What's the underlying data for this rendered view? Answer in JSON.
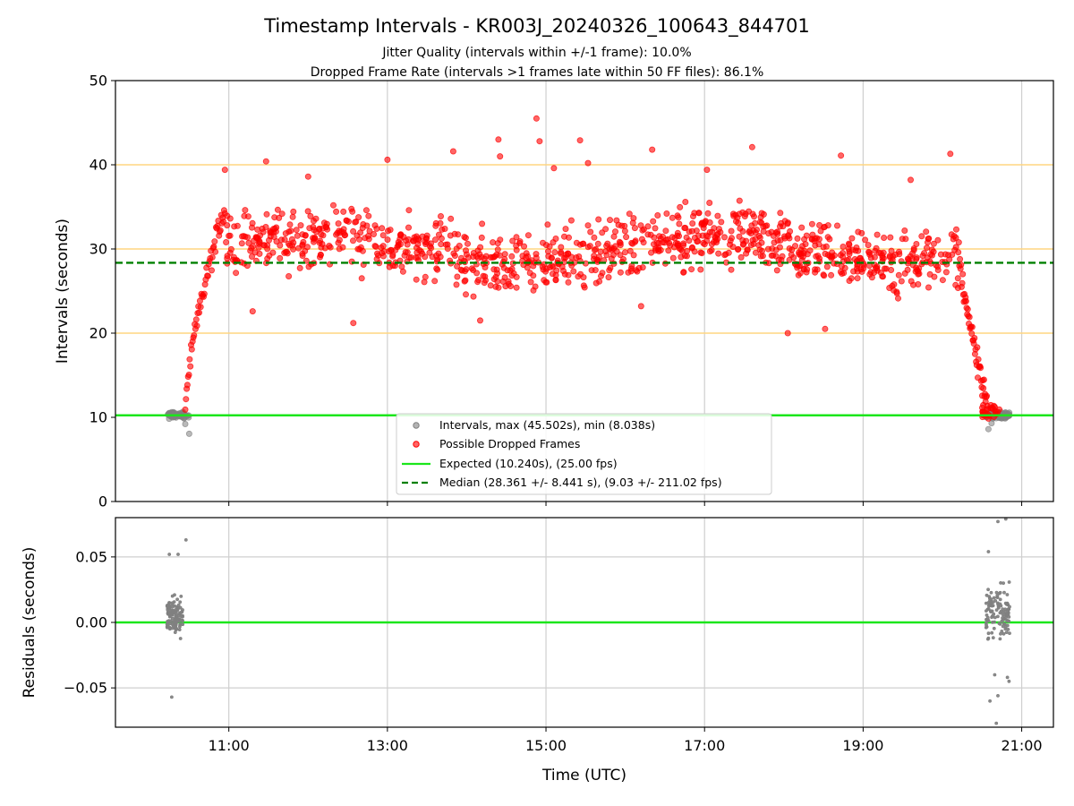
{
  "chart_data": [
    {
      "type": "scatter",
      "title": "Timestamp Intervals - KR003J_20240326_100643_844701",
      "subtitle_lines": [
        "Jitter Quality (intervals within +/-1 frame): 10.0%",
        "Dropped Frame Rate (intervals >1 frames late within 50 FF files): 86.1%"
      ],
      "xlabel": "",
      "ylabel": "Intervals (seconds)",
      "x_unit": "hours (UTC)",
      "xlim": [
        9.57,
        21.4
      ],
      "ylim": [
        0,
        50
      ],
      "yticks": [
        0,
        10,
        20,
        30,
        40,
        50
      ],
      "xticks": [
        {
          "value": 11,
          "label": "11:00"
        },
        {
          "value": 13,
          "label": "13:00"
        },
        {
          "value": 15,
          "label": "15:00"
        },
        {
          "value": 17,
          "label": "17:00"
        },
        {
          "value": 19,
          "label": "19:00"
        },
        {
          "value": 21,
          "label": "21:00"
        }
      ],
      "grid": "vertical",
      "reference_lines": [
        {
          "y": 20,
          "color": "#ffd580"
        },
        {
          "y": 30,
          "color": "#ffd580"
        },
        {
          "y": 40,
          "color": "#ffd580"
        }
      ],
      "expected_line": {
        "y": 10.24,
        "color": "#1be61b",
        "style": "solid"
      },
      "median_line": {
        "y": 28.361,
        "color": "#008000",
        "style": "dashed"
      },
      "legend": {
        "placement": "lower-center",
        "entries": [
          {
            "label": "Intervals, max (45.502s), min (8.038s)",
            "marker": "dot",
            "color": "#808080"
          },
          {
            "label": "Possible Dropped Frames",
            "marker": "dot",
            "color": "#ff0000"
          },
          {
            "label": "Expected (10.240s), (25.00 fps)",
            "marker": "line",
            "color": "#1be61b"
          },
          {
            "label": "Median (28.361 +/- 8.441 s), (9.03 +/- 211.02 fps)",
            "marker": "dashed",
            "color": "#008000"
          }
        ]
      },
      "series": [
        {
          "name": "Intervals, max (45.502s), min (8.038s)",
          "color": "#808080",
          "clusters": [
            {
              "x_range": [
                10.22,
                10.5
              ],
              "y_center": 10.24,
              "y_spread": 0.55,
              "count": 70
            },
            {
              "x_range": [
                20.55,
                20.85
              ],
              "y_center": 10.24,
              "y_spread": 0.55,
              "count": 70
            }
          ],
          "points": [
            [
              10.5,
              8.04
            ],
            [
              20.58,
              8.6
            ],
            [
              10.45,
              9.2
            ],
            [
              20.62,
              9.3
            ]
          ]
        },
        {
          "name": "Possible Dropped Frames",
          "color": "#ff0000",
          "ramp_up": {
            "x_range": [
              10.45,
              10.95
            ],
            "y_range": [
              11,
              35
            ]
          },
          "plateau": {
            "x_range": [
              10.95,
              20.2
            ],
            "y_range": [
              21,
              38
            ],
            "count": 1050
          },
          "ramp_down": {
            "x_range": [
              20.2,
              20.58
            ],
            "y_range": [
              30,
              11
            ]
          },
          "tail": {
            "x_range": [
              20.5,
              20.72
            ],
            "y_range": [
              9.8,
              11.5
            ],
            "count": 25
          },
          "outliers": [
            [
              14.88,
              45.5
            ],
            [
              14.92,
              42.8
            ],
            [
              15.43,
              42.9
            ],
            [
              14.4,
              43.0
            ],
            [
              13.83,
              41.6
            ],
            [
              17.6,
              42.1
            ],
            [
              20.1,
              41.3
            ],
            [
              18.72,
              41.1
            ],
            [
              16.34,
              41.8
            ],
            [
              14.42,
              41.0
            ],
            [
              13.0,
              40.6
            ],
            [
              11.47,
              40.4
            ],
            [
              17.03,
              39.4
            ],
            [
              15.1,
              39.6
            ],
            [
              10.95,
              39.4
            ],
            [
              12.0,
              38.6
            ],
            [
              19.6,
              38.2
            ],
            [
              15.53,
              40.2
            ],
            [
              14.17,
              21.5
            ],
            [
              18.05,
              20.0
            ],
            [
              18.52,
              20.5
            ],
            [
              12.57,
              21.2
            ],
            [
              11.3,
              22.6
            ],
            [
              16.2,
              23.2
            ]
          ]
        }
      ]
    },
    {
      "type": "scatter",
      "xlabel": "Time (UTC)",
      "ylabel": "Residuals (seconds)",
      "x_unit": "hours (UTC)",
      "xlim": [
        9.57,
        21.4
      ],
      "ylim": [
        -0.08,
        0.08
      ],
      "yticks": [
        {
          "value": 0.05,
          "label": "0.05"
        },
        {
          "value": 0.0,
          "label": "0.00"
        },
        {
          "value": -0.05,
          "label": "−0.05"
        }
      ],
      "xticks": [
        {
          "value": 11,
          "label": "11:00"
        },
        {
          "value": 13,
          "label": "13:00"
        },
        {
          "value": 15,
          "label": "15:00"
        },
        {
          "value": 17,
          "label": "17:00"
        },
        {
          "value": 19,
          "label": "19:00"
        },
        {
          "value": 21,
          "label": "21:00"
        }
      ],
      "grid": "both",
      "zero_line": {
        "y": 0,
        "color": "#1be61b"
      },
      "series": [
        {
          "color": "#808080",
          "clusters": [
            {
              "x_range": [
                10.22,
                10.42
              ],
              "y_center": 0.005,
              "y_spread": 0.02,
              "count": 120
            },
            {
              "x_range": [
                20.55,
                20.85
              ],
              "y_center": 0.008,
              "y_spread": 0.028,
              "count": 120
            }
          ],
          "points": [
            [
              10.28,
              -0.057
            ],
            [
              10.25,
              0.052
            ],
            [
              10.36,
              0.052
            ],
            [
              10.46,
              0.063
            ],
            [
              20.8,
              0.079
            ],
            [
              20.7,
              0.077
            ],
            [
              20.58,
              0.054
            ],
            [
              20.68,
              -0.077
            ],
            [
              20.84,
              -0.045
            ],
            [
              20.82,
              -0.042
            ],
            [
              20.66,
              -0.04
            ],
            [
              20.7,
              -0.056
            ],
            [
              20.6,
              -0.06
            ]
          ]
        }
      ]
    }
  ]
}
